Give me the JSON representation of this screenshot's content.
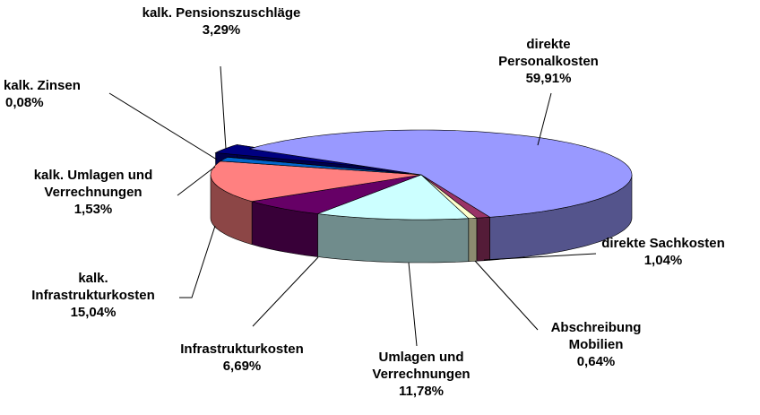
{
  "chart_data": {
    "type": "pie",
    "categories": [
      "direkte Personalkosten",
      "direkte Sachkosten",
      "Abschreibung Mobilien",
      "Umlagen und Verrechnungen",
      "Infrastrukturkosten",
      "kalk. Infrastrukturkosten",
      "kalk. Umlagen und Verrechnungen",
      "kalk. Zinsen",
      "kalk. Pensionszuschläge"
    ],
    "values": [
      59.91,
      1.04,
      0.64,
      11.78,
      6.69,
      15.04,
      1.53,
      0.08,
      3.29
    ],
    "value_labels": [
      "59,91%",
      "1,04%",
      "0,64%",
      "11,78%",
      "6,69%",
      "15,04%",
      "1,53%",
      "0,08%",
      "3,29%"
    ],
    "colors": [
      "#9999ff",
      "#993366",
      "#ffffcc",
      "#ccffff",
      "#660066",
      "#ff8080",
      "#0066cc",
      "#ccccff",
      "#000080"
    ]
  }
}
